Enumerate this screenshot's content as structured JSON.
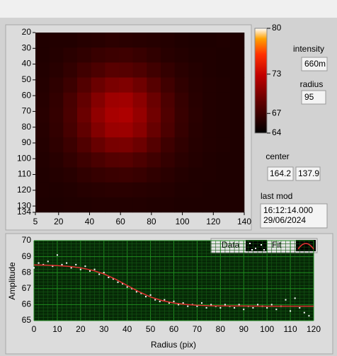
{
  "chart_data": [
    {
      "type": "heatmap",
      "x": [
        9.5,
        18.5,
        27.5,
        36.5,
        45.5,
        54.5,
        63.5,
        72.5,
        81.5,
        90.5,
        99.5,
        108.5,
        117.5,
        126.5,
        135.5
      ],
      "y": [
        24.75,
        34.25,
        43.75,
        53.25,
        62.75,
        72.25,
        81.75,
        91.25,
        100.75,
        110.25,
        119.75,
        129.25
      ],
      "values": [
        [
          65.6,
          65.7,
          65.7,
          65.9,
          66.0,
          66.2,
          66.1,
          66.0,
          65.9,
          65.8,
          65.6,
          65.5,
          65.5,
          65.6,
          65.5
        ],
        [
          65.6,
          65.8,
          66.1,
          66.4,
          66.8,
          67.0,
          67.1,
          66.8,
          66.4,
          66.0,
          65.8,
          65.6,
          65.6,
          65.5,
          65.5
        ],
        [
          65.7,
          66.0,
          66.5,
          67.2,
          67.8,
          68.4,
          68.3,
          67.9,
          67.2,
          66.6,
          66.1,
          65.8,
          65.6,
          65.5,
          65.5
        ],
        [
          65.8,
          66.3,
          67.0,
          68.1,
          69.2,
          69.9,
          70.1,
          69.4,
          68.3,
          67.2,
          66.4,
          65.9,
          65.7,
          65.6,
          65.5
        ],
        [
          65.9,
          66.5,
          67.6,
          68.9,
          70.3,
          71.4,
          71.5,
          70.6,
          69.2,
          67.8,
          66.7,
          66.0,
          65.7,
          65.6,
          65.5
        ],
        [
          66.0,
          66.6,
          67.7,
          69.2,
          70.8,
          71.8,
          72.0,
          71.0,
          69.5,
          68.0,
          66.8,
          66.1,
          65.7,
          65.6,
          65.5
        ],
        [
          65.9,
          66.5,
          67.5,
          68.8,
          70.2,
          71.2,
          71.3,
          70.5,
          69.1,
          67.8,
          66.7,
          66.0,
          65.7,
          65.6,
          65.5
        ],
        [
          65.8,
          66.3,
          67.0,
          68.0,
          69.1,
          69.8,
          69.9,
          69.3,
          68.2,
          67.1,
          66.4,
          65.9,
          65.7,
          65.6,
          65.5
        ],
        [
          65.7,
          66.0,
          66.5,
          67.1,
          67.7,
          68.2,
          68.3,
          67.8,
          67.2,
          66.6,
          66.1,
          65.8,
          65.6,
          65.5,
          65.5
        ],
        [
          65.6,
          65.8,
          66.0,
          66.4,
          66.7,
          66.9,
          67.0,
          66.8,
          66.4,
          66.1,
          65.8,
          65.6,
          65.6,
          65.5,
          65.5
        ],
        [
          65.6,
          65.6,
          65.7,
          65.9,
          66.0,
          66.1,
          66.1,
          66.0,
          65.9,
          65.8,
          65.6,
          65.6,
          65.5,
          65.5,
          65.5
        ],
        [
          65.5,
          65.5,
          65.6,
          65.6,
          65.7,
          65.7,
          65.7,
          65.7,
          65.6,
          65.6,
          65.5,
          65.5,
          65.5,
          65.5,
          65.5
        ]
      ],
      "xlim": [
        5,
        140
      ],
      "ylim": [
        134,
        20
      ],
      "xticks": [
        5,
        20,
        40,
        60,
        80,
        100,
        120,
        140
      ],
      "yticks": [
        20,
        30,
        40,
        50,
        60,
        70,
        80,
        90,
        100,
        110,
        120,
        130,
        134
      ],
      "clim": [
        64,
        80
      ],
      "cticks": [
        80,
        73,
        67,
        64
      ]
    },
    {
      "type": "scatter",
      "xlabel": "Radius (pix)",
      "ylabel": "Amplitude",
      "xlim": [
        0,
        120
      ],
      "ylim": [
        65,
        70
      ],
      "xticks": [
        0,
        10,
        20,
        30,
        40,
        50,
        60,
        70,
        80,
        90,
        100,
        110,
        120
      ],
      "yticks": [
        65,
        66,
        67,
        68,
        69,
        70
      ],
      "grid": true,
      "series": [
        {
          "name": "Data",
          "color": "#ffffff",
          "x": [
            0,
            2,
            4,
            6,
            8,
            10,
            12,
            14,
            16,
            18,
            20,
            22,
            24,
            26,
            28,
            30,
            32,
            34,
            36,
            38,
            40,
            42,
            44,
            46,
            48,
            50,
            52,
            54,
            56,
            58,
            60,
            62,
            64,
            66,
            68,
            70,
            72,
            74,
            76,
            78,
            80,
            82,
            84,
            86,
            88,
            90,
            92,
            94,
            96,
            98,
            100,
            102,
            104,
            106,
            108,
            110,
            112,
            114,
            116,
            118
          ],
          "values": [
            68.3,
            68.6,
            68.5,
            68.7,
            68.4,
            69.1,
            68.5,
            68.6,
            68.3,
            68.5,
            68.2,
            68.4,
            68.1,
            68.2,
            67.9,
            68.0,
            67.7,
            67.6,
            67.4,
            67.3,
            67.1,
            67.0,
            66.8,
            66.7,
            66.5,
            66.6,
            66.3,
            66.2,
            66.3,
            66.1,
            66.2,
            66.0,
            66.1,
            65.9,
            66.0,
            65.9,
            66.1,
            65.8,
            66.0,
            65.9,
            65.8,
            66.0,
            65.9,
            65.8,
            66.0,
            65.7,
            65.9,
            65.8,
            66.0,
            65.9,
            65.8,
            66.0,
            65.7,
            65.9,
            66.3,
            65.6,
            66.4,
            65.8,
            65.5,
            65.3
          ]
        },
        {
          "name": "Fit",
          "color": "#e03030",
          "mode": "line",
          "x": [
            0,
            5,
            10,
            15,
            20,
            25,
            30,
            35,
            40,
            45,
            50,
            55,
            60,
            65,
            70,
            75,
            80,
            90,
            100,
            110,
            120
          ],
          "values": [
            68.48,
            68.47,
            68.44,
            68.39,
            68.3,
            68.15,
            67.92,
            67.59,
            67.2,
            66.81,
            66.48,
            66.25,
            66.1,
            66.01,
            65.96,
            65.93,
            65.92,
            65.91,
            65.9,
            65.9,
            65.9
          ]
        }
      ]
    }
  ],
  "controls": {
    "intensity": {
      "label": "intensity",
      "value": "660m"
    },
    "radius": {
      "label": "radius",
      "value": "95"
    },
    "center": {
      "label": "center",
      "values": [
        "164.2",
        "137.9"
      ]
    },
    "last_mod": {
      "label": "last mod",
      "lines": [
        "16:12:14.000",
        "29/06/2024"
      ]
    }
  }
}
